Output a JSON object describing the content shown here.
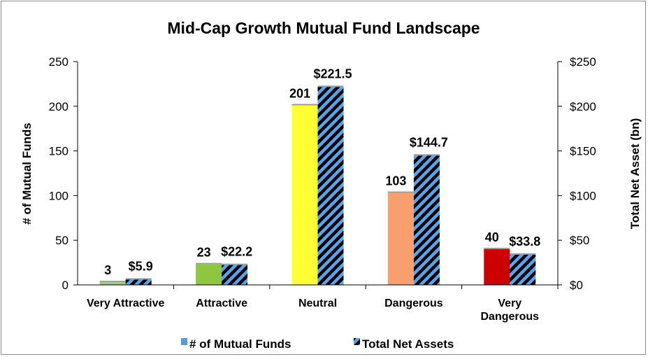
{
  "chart_data": {
    "type": "bar",
    "title": "Mid-Cap Growth Mutual Fund Landscape",
    "categories": [
      [
        "Very Attractive"
      ],
      [
        "Attractive"
      ],
      [
        "Neutral"
      ],
      [
        "Dangerous"
      ],
      [
        "Very",
        "Dangerous"
      ]
    ],
    "series": [
      {
        "name": "# of Mutual Funds",
        "axis": "left",
        "values": [
          3,
          23,
          201,
          103,
          40
        ],
        "data_labels": [
          "3",
          "23",
          "201",
          "103",
          "40"
        ],
        "bar_colors": [
          "#9dc97f",
          "#8fc640",
          "#ffff33",
          "#f99f6e",
          "#cc0000"
        ],
        "legend_color": "#5b9bd5"
      },
      {
        "name": "Total Net Assets",
        "axis": "right",
        "values": [
          5.9,
          22.2,
          221.5,
          144.7,
          33.8
        ],
        "data_labels": [
          "$5.9",
          "$22.2",
          "$221.5",
          "$144.7",
          "$33.8"
        ],
        "pattern": "diagonal stripes",
        "stripe_colors": [
          "#000000",
          "#5ba3ea"
        ]
      }
    ],
    "ylabel": "# of Mutual Funds",
    "ylabel_right": "Total Net Asset (bn)",
    "ylim": [
      0,
      250
    ],
    "ylim_right": [
      0,
      250
    ],
    "yticks": [
      "0",
      "50",
      "100",
      "150",
      "200",
      "250"
    ],
    "yticks_right": [
      "$0",
      "$50",
      "$100",
      "$150",
      "$200",
      "$250"
    ],
    "grid": false,
    "legend_position": "bottom"
  }
}
